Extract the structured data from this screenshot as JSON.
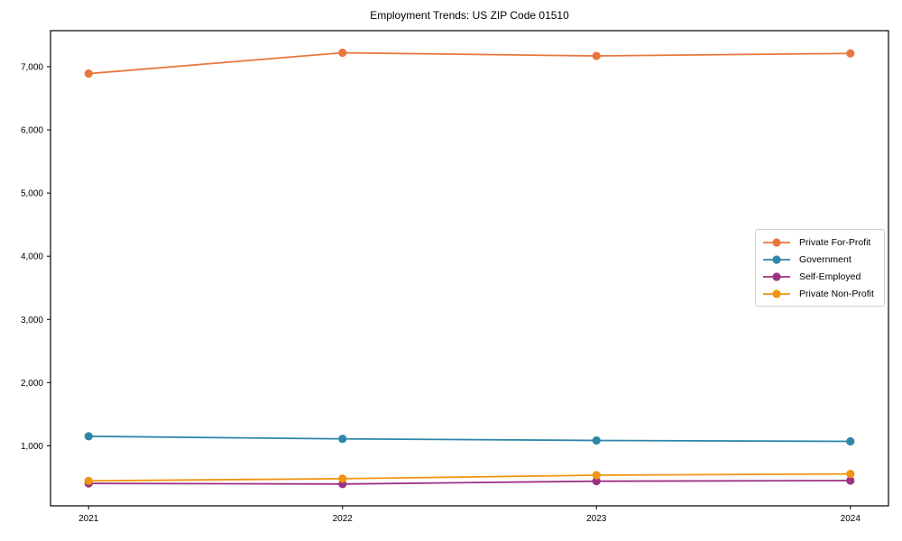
{
  "title": "Employment Trends: US ZIP Code 01510",
  "chart_data": {
    "type": "line",
    "title": "Employment Trends: US ZIP Code 01510",
    "xlabel": "",
    "ylabel": "",
    "x": [
      2021,
      2022,
      2023,
      2024
    ],
    "xtick_labels": [
      "2021",
      "2022",
      "2023",
      "2024"
    ],
    "ytick_values": [
      1000,
      2000,
      3000,
      4000,
      5000,
      6000,
      7000
    ],
    "ytick_labels": [
      "1,000",
      "2,000",
      "3,000",
      "4,000",
      "5,000",
      "6,000",
      "7,000"
    ],
    "xlim": [
      2020.85,
      2024.15
    ],
    "ylim": [
      50,
      7570
    ],
    "grid": false,
    "plot_background": "#ffffff",
    "spine_color": "#000000",
    "legend_position": "center-right",
    "marker": "circle",
    "series": [
      {
        "name": "Private For-Profit",
        "color": "#e8773d",
        "values": [
          6890,
          7220,
          7170,
          7210
        ]
      },
      {
        "name": "Government",
        "color": "#2f86a8",
        "values": [
          1150,
          1110,
          1085,
          1070
        ]
      },
      {
        "name": "Self-Employed",
        "color": "#9d3184",
        "values": [
          405,
          395,
          440,
          450
        ]
      },
      {
        "name": "Private Non-Profit",
        "color": "#ef9512",
        "values": [
          445,
          480,
          535,
          555
        ]
      }
    ]
  }
}
